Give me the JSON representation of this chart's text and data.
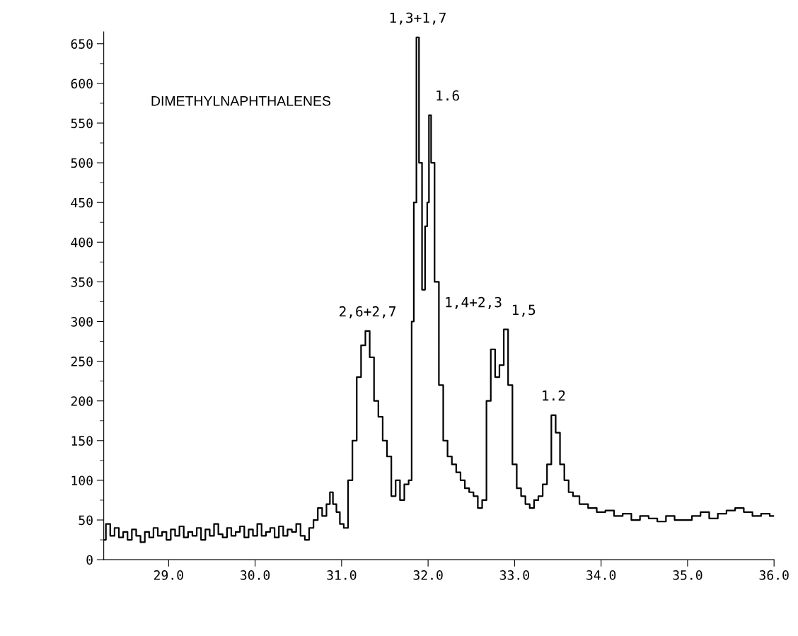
{
  "chart_data": {
    "type": "step",
    "title": "DIMETHYLNAPHTHALENES",
    "x": [
      28.25,
      28.3,
      28.35,
      28.4,
      28.45,
      28.5,
      28.55,
      28.6,
      28.65,
      28.7,
      28.75,
      28.8,
      28.85,
      28.9,
      28.95,
      29.0,
      29.05,
      29.1,
      29.15,
      29.2,
      29.25,
      29.3,
      29.35,
      29.4,
      29.45,
      29.5,
      29.55,
      29.6,
      29.65,
      29.7,
      29.75,
      29.8,
      29.85,
      29.9,
      29.95,
      30.0,
      30.05,
      30.1,
      30.15,
      30.2,
      30.25,
      30.3,
      30.35,
      30.4,
      30.45,
      30.5,
      30.55,
      30.6,
      30.65,
      30.7,
      30.75,
      30.8,
      30.85,
      30.88,
      30.92,
      30.96,
      31.0,
      31.05,
      31.1,
      31.15,
      31.2,
      31.25,
      31.3,
      31.35,
      31.4,
      31.45,
      31.5,
      31.55,
      31.6,
      31.65,
      31.7,
      31.75,
      31.8,
      31.82,
      31.85,
      31.88,
      31.91,
      31.95,
      31.98,
      32.0,
      32.02,
      32.05,
      32.1,
      32.15,
      32.2,
      32.25,
      32.3,
      32.35,
      32.4,
      32.45,
      32.5,
      32.55,
      32.6,
      32.65,
      32.7,
      32.75,
      32.8,
      32.85,
      32.9,
      32.95,
      33.0,
      33.05,
      33.1,
      33.15,
      33.2,
      33.25,
      33.3,
      33.35,
      33.4,
      33.45,
      33.5,
      33.55,
      33.6,
      33.65,
      33.7,
      33.8,
      33.9,
      34.0,
      34.1,
      34.2,
      34.3,
      34.4,
      34.5,
      34.6,
      34.7,
      34.8,
      34.9,
      35.0,
      35.1,
      35.2,
      35.3,
      35.4,
      35.5,
      35.6,
      35.7,
      35.8,
      35.9,
      36.0
    ],
    "values": [
      25,
      45,
      30,
      40,
      28,
      35,
      25,
      38,
      30,
      22,
      35,
      28,
      40,
      30,
      35,
      25,
      38,
      30,
      42,
      28,
      35,
      30,
      40,
      25,
      38,
      30,
      45,
      32,
      28,
      40,
      30,
      35,
      42,
      28,
      38,
      30,
      45,
      30,
      35,
      40,
      28,
      42,
      30,
      38,
      35,
      45,
      30,
      25,
      40,
      50,
      65,
      55,
      70,
      85,
      70,
      60,
      45,
      40,
      100,
      150,
      230,
      270,
      288,
      255,
      200,
      180,
      150,
      130,
      80,
      100,
      75,
      95,
      100,
      300,
      450,
      658,
      500,
      340,
      420,
      450,
      560,
      500,
      350,
      220,
      150,
      130,
      120,
      110,
      100,
      90,
      85,
      80,
      65,
      75,
      200,
      265,
      230,
      245,
      290,
      220,
      120,
      90,
      80,
      70,
      65,
      75,
      80,
      95,
      120,
      182,
      160,
      120,
      100,
      85,
      80,
      70,
      65,
      60,
      62,
      55,
      58,
      50,
      55,
      52,
      48,
      55,
      50,
      50,
      55,
      60,
      52,
      58,
      62,
      65,
      60,
      55,
      58,
      55
    ],
    "color": "#000000",
    "xlim": [
      28.25,
      36.0
    ],
    "ylim": [
      0,
      665
    ],
    "xticks": [
      {
        "value": 29,
        "label": "29.0"
      },
      {
        "value": 30,
        "label": "30.0"
      },
      {
        "value": 31,
        "label": "31.0"
      },
      {
        "value": 32,
        "label": "32.0"
      },
      {
        "value": 33,
        "label": "33.0"
      },
      {
        "value": 34,
        "label": "34.0"
      },
      {
        "value": 35,
        "label": "35.0"
      },
      {
        "value": 36,
        "label": "36.0"
      }
    ],
    "yticks": [
      0,
      50,
      100,
      150,
      200,
      250,
      300,
      350,
      400,
      450,
      500,
      550,
      600,
      650
    ],
    "grid": false,
    "legend": false,
    "annotations": [
      {
        "text": "2,6+2,7",
        "x": 31.3,
        "y": 288
      },
      {
        "text": "1,3+1,7",
        "x": 31.88,
        "y": 658
      },
      {
        "text": "1.6",
        "x": 32.02,
        "y": 560
      },
      {
        "text": "1,4+2,3",
        "x": 32.75,
        "y": 265
      },
      {
        "text": "1,5",
        "x": 32.9,
        "y": 290
      },
      {
        "text": "1.2",
        "x": 33.45,
        "y": 182
      }
    ]
  }
}
